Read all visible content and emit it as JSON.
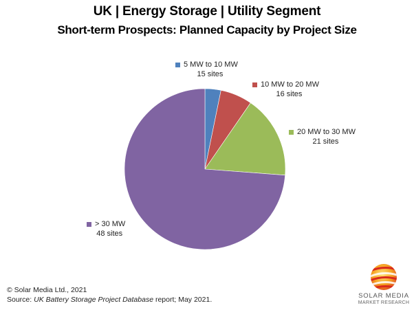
{
  "chart_data": {
    "type": "pie",
    "title": "UK | Energy Storage | Utility Segment",
    "subtitle": "Short-term Prospects: Planned Capacity by Project Size",
    "categories": [
      "5 MW to 10 MW",
      "10 MW to 20 MW",
      "20 MW to 30 MW",
      "> 30 MW"
    ],
    "values": [
      3.2,
      6.4,
      16.6,
      73.8
    ],
    "value_unit": "% of planned capacity (estimated from slice angles)",
    "sites": [
      15,
      16,
      21,
      48
    ],
    "data_labels": [
      "15 sites",
      "16 sites",
      "21 sites",
      "48 sites"
    ],
    "colors": [
      "#4F81BD",
      "#C0504D",
      "#9BBB59",
      "#8064A2"
    ],
    "start_angle_deg": 0,
    "direction": "clockwise",
    "legend": "inline labels"
  },
  "title": {
    "line1": "UK | Energy Storage | Utility Segment",
    "line2": "Short-term Prospects: Planned Capacity by Project Size"
  },
  "labels": [
    {
      "name": "5 MW to 10 MW",
      "sites": "15 sites"
    },
    {
      "name": "10 MW to 20 MW",
      "sites": "16 sites"
    },
    {
      "name": "20 MW to 30 MW",
      "sites": "21 sites"
    },
    {
      "name": "> 30 MW",
      "sites": "48 sites"
    }
  ],
  "footer": {
    "copyright": "© Solar Media Ltd., 2021",
    "source_prefix": "Source: ",
    "source_italic": "UK Battery Storage Project Database",
    "source_suffix": " report; May 2021."
  },
  "logo": {
    "line1": "SOLAR MEDIA",
    "line2": "MARKET RESEARCH"
  }
}
